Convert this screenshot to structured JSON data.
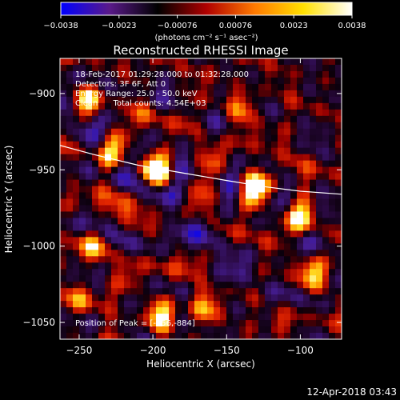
{
  "chart_data": {
    "type": "heatmap",
    "title": "Reconstructed RHESSI Image",
    "xlabel": "Heliocentric X (arcsec)",
    "ylabel": "Heliocentric Y (arcsec)",
    "xlim": [
      -263,
      -72
    ],
    "ylim": [
      -1061,
      -877
    ],
    "x_ticks": [
      -250,
      -200,
      -150,
      -100
    ],
    "y_ticks": [
      -900,
      -950,
      -1000,
      -1050
    ],
    "x_tick_labels": [
      "−250",
      "−200",
      "−150",
      "−100"
    ],
    "y_tick_labels": [
      "−900",
      "−950",
      "−1000",
      "−1050"
    ],
    "colorbar": {
      "range": [
        -0.0038,
        0.0038
      ],
      "ticks": [
        "−0.0038",
        "−0.0023",
        "−0.00076",
        "0.00076",
        "0.0023",
        "0.0038"
      ],
      "units_label": "(photons cm⁻² s⁻¹ asec⁻²)",
      "colors": [
        "#0000ff",
        "#5a1a8a",
        "#000000",
        "#b00000",
        "#ff7a00",
        "#ffe000",
        "#ffffff"
      ]
    },
    "info_lines": [
      "18-Feb-2017 01:29:28.000 to 01:32:28.000",
      "Detectors: 3F 6F, Att 0",
      "Energy Range: 25.0 - 50.0 keV",
      "Clean      Total counts: 4.54E+03"
    ],
    "peak_text": "Position of Peak = [-256,-884]",
    "limb_curve": {
      "x": [
        -263,
        -240,
        -210,
        -180,
        -150,
        -125,
        -100,
        -72
      ],
      "y": [
        -934,
        -940,
        -947,
        -952,
        -957,
        -961,
        -964,
        -966
      ]
    },
    "sources": [
      {
        "x": -200,
        "y": -950,
        "amp": 0.0038
      },
      {
        "x": -130,
        "y": -962,
        "amp": 0.0035
      },
      {
        "x": -225,
        "y": -940,
        "amp": 0.0028
      },
      {
        "x": -245,
        "y": -905,
        "amp": 0.0026
      },
      {
        "x": -195,
        "y": -1045,
        "amp": 0.0029
      },
      {
        "x": -165,
        "y": -1040,
        "amp": 0.0022
      },
      {
        "x": -100,
        "y": -980,
        "amp": 0.0024
      },
      {
        "x": -90,
        "y": -1020,
        "amp": 0.002
      },
      {
        "x": -140,
        "y": -910,
        "amp": 0.0021
      },
      {
        "x": -240,
        "y": -1000,
        "amp": 0.0018
      },
      {
        "x": -250,
        "y": -1035,
        "amp": 0.0019
      },
      {
        "x": -110,
        "y": -1048,
        "amp": 0.0017
      }
    ]
  },
  "timestamp": "12-Apr-2018 03:43"
}
